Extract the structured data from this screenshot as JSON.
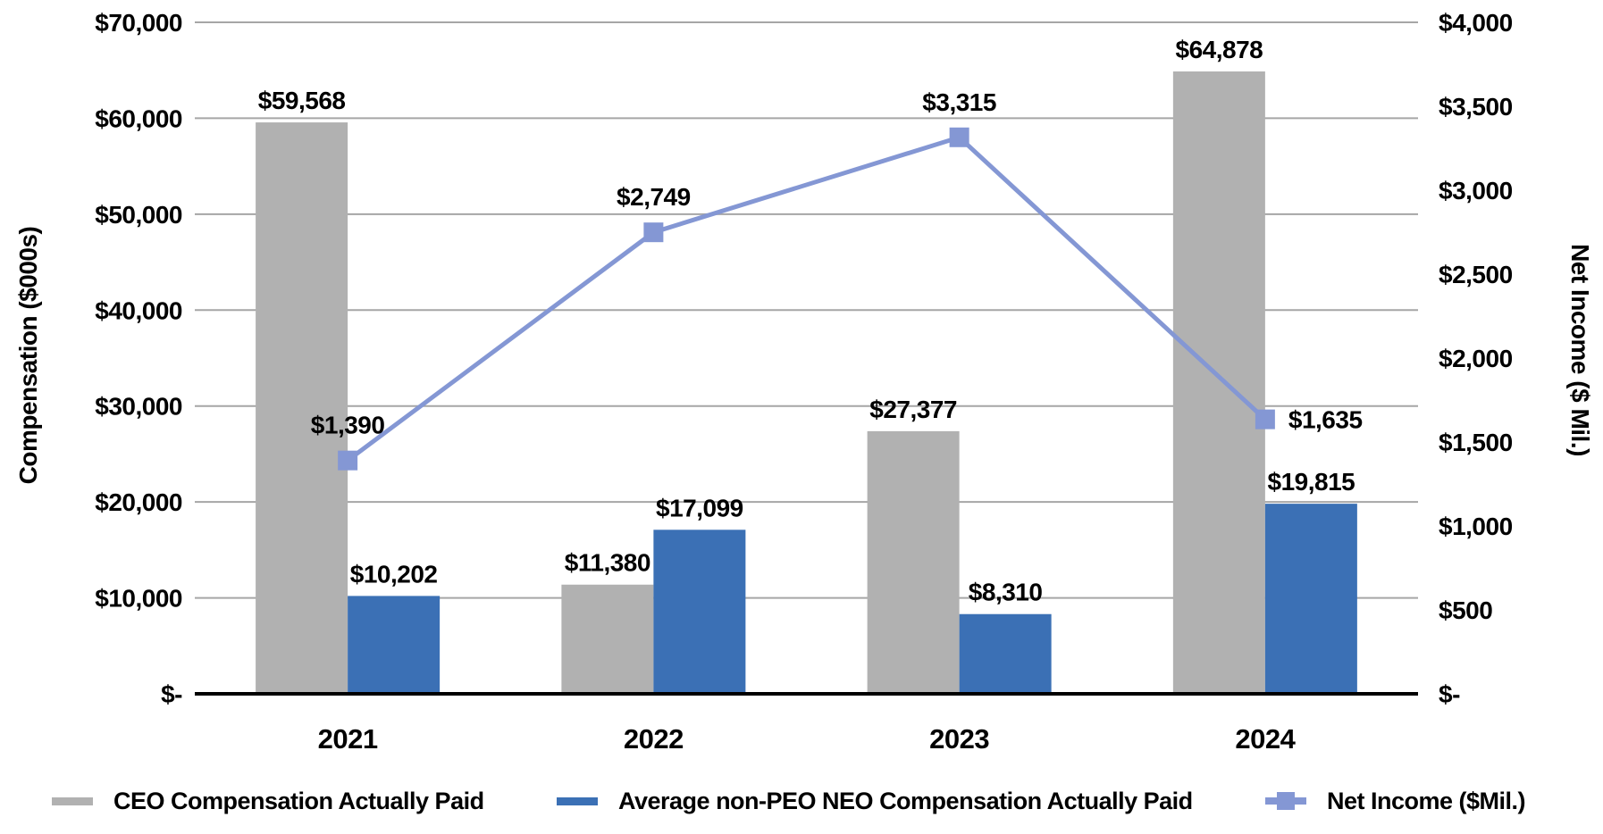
{
  "page": {
    "background": "#FFFFFF",
    "text_color": "#000000"
  },
  "chart_data": {
    "type": "combo-bar-line",
    "title": "",
    "categories": [
      "2021",
      "2022",
      "2023",
      "2024"
    ],
    "series": [
      {
        "name": "CEO Compensation Actually Paid",
        "type": "bar",
        "axis": "left",
        "color": "#B1B1B1",
        "values": [
          59568,
          11380,
          27377,
          64878
        ],
        "labels": [
          "$59,568",
          "$11,380",
          "$27,377",
          "$64,878"
        ]
      },
      {
        "name": "Average non-PEO NEO Compensation Actually Paid",
        "type": "bar",
        "axis": "left",
        "color": "#3B70B5",
        "values": [
          10202,
          17099,
          8310,
          19815
        ],
        "labels": [
          "$10,202",
          "$17,099",
          "$8,310",
          "$19,815"
        ]
      },
      {
        "name": "Net Income ($Mil.)",
        "type": "line",
        "axis": "right",
        "marker": "square",
        "color": "#8497D4",
        "values": [
          1390,
          2749,
          3315,
          1635
        ],
        "labels": [
          "$1,390",
          "$2,749",
          "$3,315",
          "$1,635"
        ]
      }
    ],
    "left_axis": {
      "title": "Compensation ($000s)",
      "min": 0,
      "max": 70000,
      "step": 10000,
      "ticks": [
        "$-",
        "$10,000",
        "$20,000",
        "$30,000",
        "$40,000",
        "$50,000",
        "$60,000",
        "$70,000"
      ]
    },
    "right_axis": {
      "title": "Net Income ($ Mil.)",
      "min": 0,
      "max": 4000,
      "step": 500,
      "ticks": [
        "$-",
        "$500",
        "$1,000",
        "$1,500",
        "$2,000",
        "$2,500",
        "$3,000",
        "$3,500",
        "$4,000"
      ]
    },
    "grid": {
      "horizontal": true,
      "color": "#A6A6A6"
    },
    "axis_line_color": "#000000",
    "legend_position": "bottom"
  },
  "legend": {
    "items": [
      {
        "label": "CEO Compensation Actually Paid",
        "swatch": "bar",
        "color": "#B1B1B1"
      },
      {
        "label": "Average non-PEO NEO Compensation Actually Paid",
        "swatch": "bar",
        "color": "#3B70B5"
      },
      {
        "label": "Net Income ($Mil.)",
        "swatch": "line-marker",
        "color": "#8497D4"
      }
    ]
  }
}
